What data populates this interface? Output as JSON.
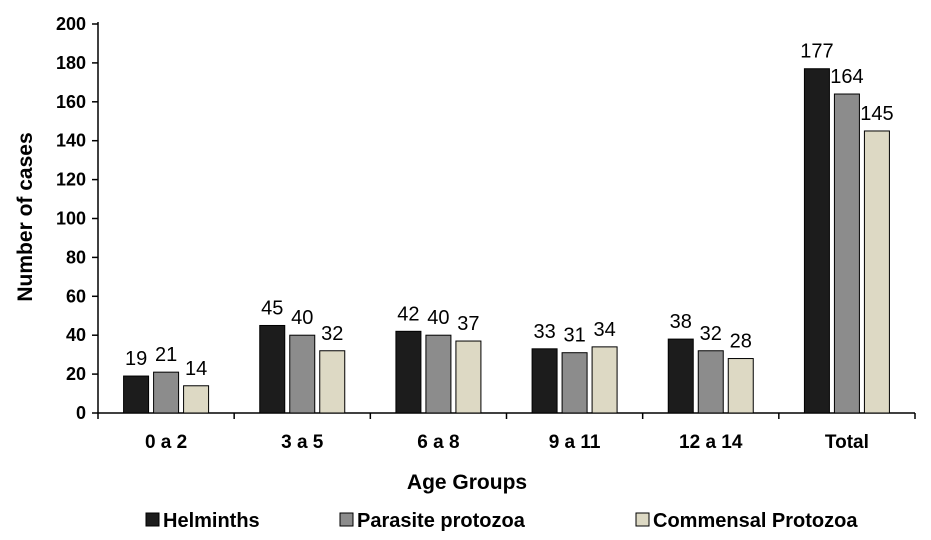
{
  "chart_data": {
    "type": "bar",
    "title": "",
    "xlabel": "Age Groups",
    "ylabel": "Number of cases",
    "ylim": [
      0,
      200
    ],
    "yticks": [
      0,
      20,
      40,
      60,
      80,
      100,
      120,
      140,
      160,
      180,
      200
    ],
    "categories": [
      "0 a 2",
      "3 a 5",
      "6 a 8",
      "9 a 11",
      "12 a 14",
      "Total"
    ],
    "series": [
      {
        "name": "Helminths",
        "values": [
          19,
          45,
          42,
          33,
          38,
          177
        ],
        "color": "#1c1c1c"
      },
      {
        "name": "Parasite protozoa",
        "values": [
          21,
          40,
          40,
          31,
          32,
          164
        ],
        "color": "#8c8c8c"
      },
      {
        "name": "Commensal Protozoa",
        "values": [
          14,
          32,
          37,
          34,
          28,
          145
        ],
        "color": "#ddd9c4"
      }
    ],
    "legend_position": "bottom",
    "grid": false,
    "data_labels": true
  }
}
